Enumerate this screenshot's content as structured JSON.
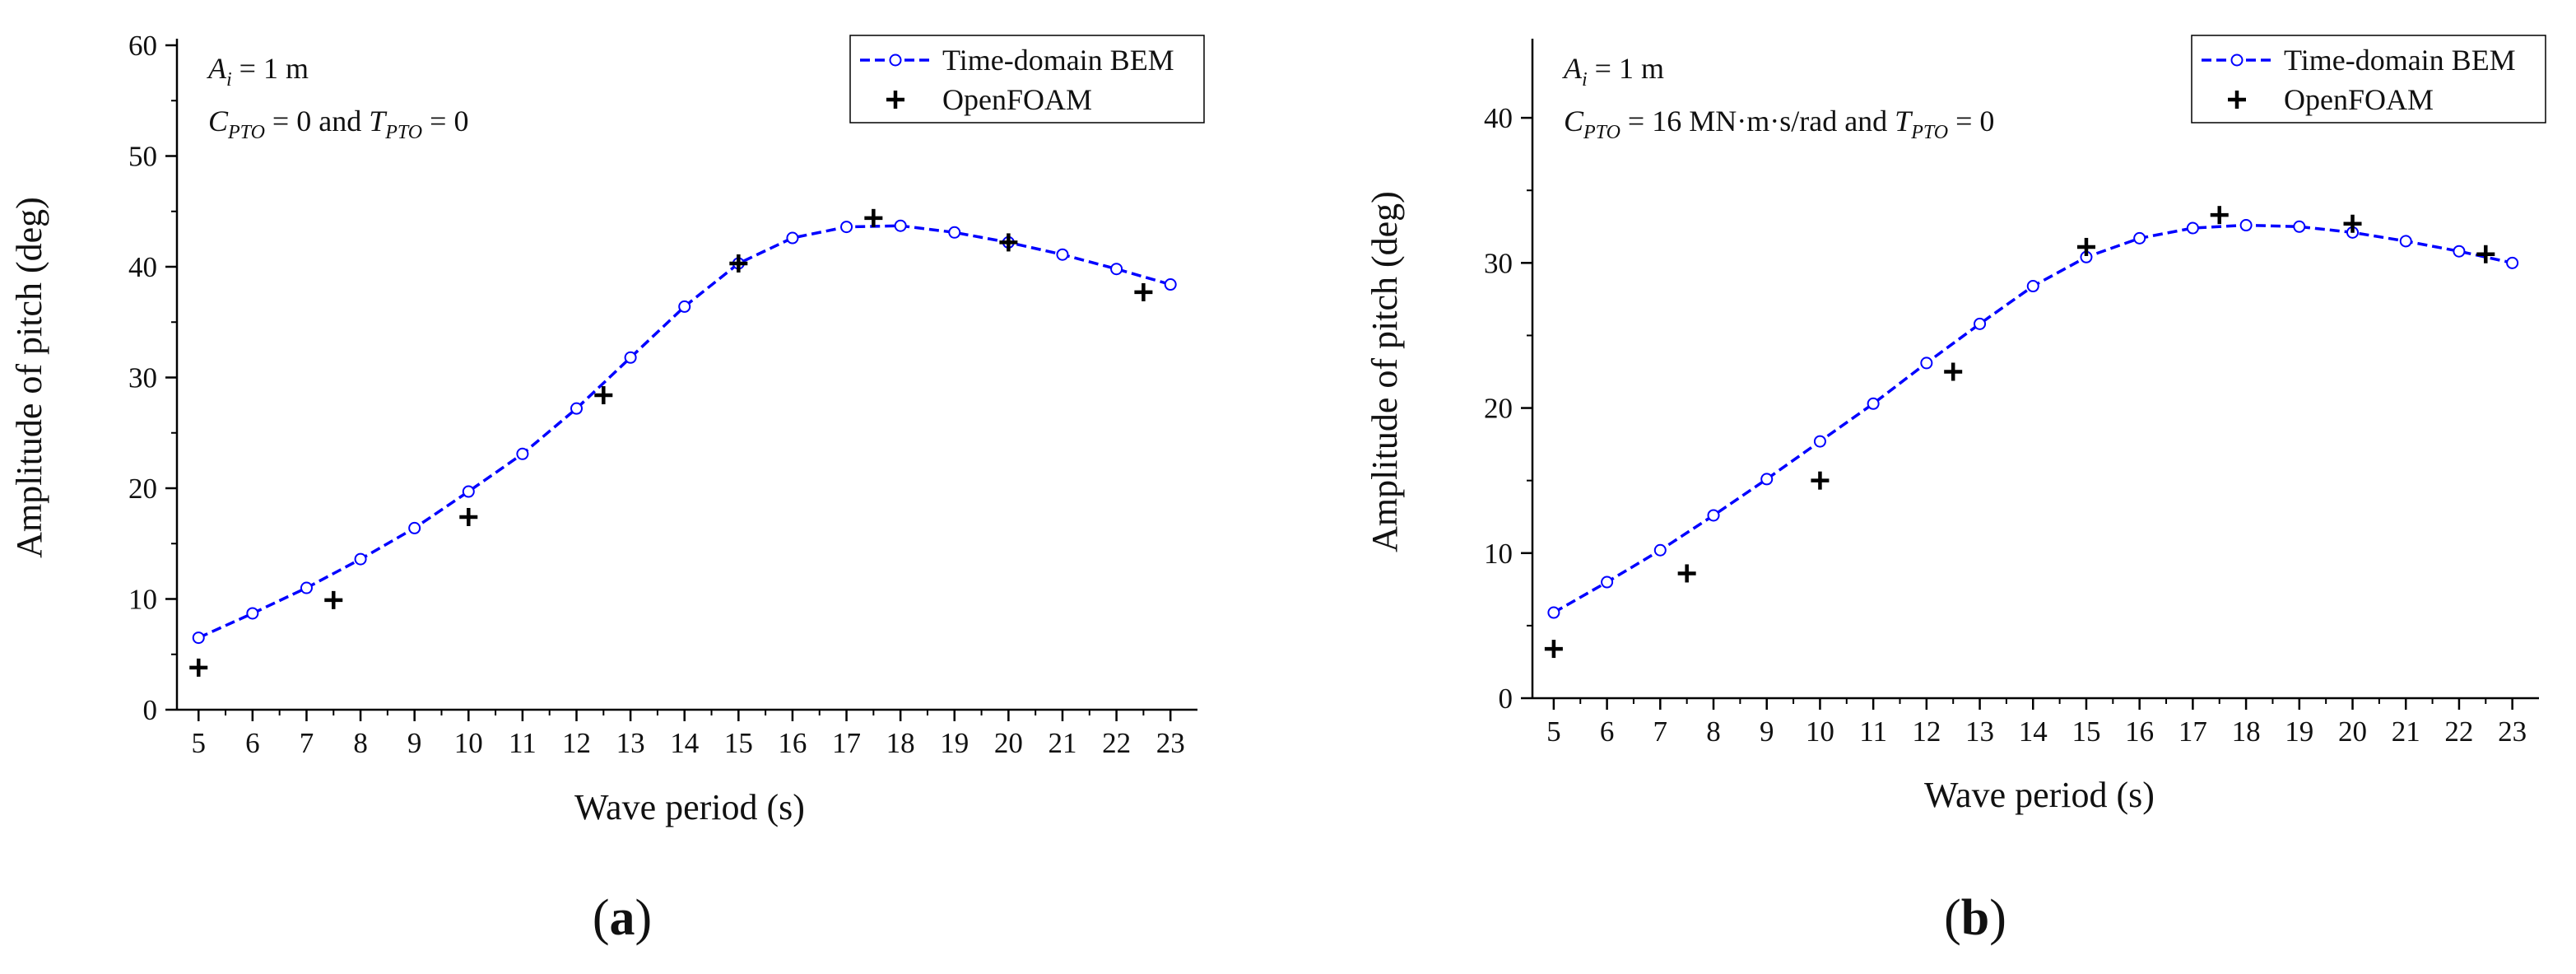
{
  "chart_data": [
    {
      "type": "line",
      "panel_label": "a",
      "xlabel": "Wave period (s)",
      "ylabel": "Amplitude of pitch (deg)",
      "xlim": [
        4.6,
        23.5
      ],
      "ylim": [
        0,
        60
      ],
      "xticks": [
        5,
        6,
        7,
        8,
        9,
        10,
        11,
        12,
        13,
        14,
        15,
        16,
        17,
        18,
        19,
        20,
        21,
        22,
        23
      ],
      "yticks": [
        0,
        10,
        20,
        30,
        40,
        50,
        60
      ],
      "annotations": {
        "amp_sym": "A",
        "amp_sub": "i",
        "amp_val": " = 1 m",
        "c_sym": "C",
        "c_sub": "PTO",
        "c_val": " = 0 and ",
        "t_sym": "T",
        "t_sub": "PTO",
        "t_val": " = 0"
      },
      "legend_position": "top-right",
      "series": [
        {
          "name": "Time-domain BEM",
          "color": "#0000ff",
          "style": "dashed-line-open-circle",
          "x": [
            5,
            6,
            7,
            8,
            9,
            10,
            11,
            12,
            13,
            14,
            15,
            16,
            17,
            18,
            19,
            20,
            21,
            22,
            23
          ],
          "y": [
            6.5,
            8.7,
            11.0,
            13.6,
            16.4,
            19.7,
            23.1,
            27.2,
            31.8,
            36.4,
            40.3,
            42.6,
            43.6,
            43.7,
            43.1,
            42.2,
            41.1,
            39.8,
            38.4
          ]
        },
        {
          "name": "OpenFOAM",
          "color": "#000000",
          "style": "plus-marker",
          "x": [
            5,
            7.5,
            10,
            12.5,
            15,
            17.5,
            20,
            22.5
          ],
          "y": [
            3.8,
            9.9,
            17.4,
            28.4,
            40.3,
            44.4,
            42.2,
            37.7
          ]
        }
      ]
    },
    {
      "type": "line",
      "panel_label": "b",
      "xlabel": "Wave period (s)",
      "ylabel": "Amplitude of pitch (deg)",
      "xlim": [
        4.6,
        23.5
      ],
      "ylim": [
        0,
        45
      ],
      "xticks": [
        5,
        6,
        7,
        8,
        9,
        10,
        11,
        12,
        13,
        14,
        15,
        16,
        17,
        18,
        19,
        20,
        21,
        22,
        23
      ],
      "yticks": [
        0,
        10,
        20,
        30,
        40
      ],
      "annotations": {
        "amp_sym": "A",
        "amp_sub": "i",
        "amp_val": " = 1 m",
        "c_sym": "C",
        "c_sub": "PTO",
        "c_val": " = 16 MN·m·s/rad and ",
        "t_sym": "T",
        "t_sub": "PTO",
        "t_val": " = 0"
      },
      "legend_position": "top-right",
      "series": [
        {
          "name": "Time-domain BEM",
          "color": "#0000ff",
          "style": "dashed-line-open-circle",
          "x": [
            5,
            6,
            7,
            8,
            9,
            10,
            11,
            12,
            13,
            14,
            15,
            16,
            17,
            18,
            19,
            20,
            21,
            22,
            23
          ],
          "y": [
            5.9,
            8.0,
            10.2,
            12.6,
            15.1,
            17.7,
            20.3,
            23.1,
            25.8,
            28.4,
            30.4,
            31.7,
            32.4,
            32.6,
            32.5,
            32.1,
            31.5,
            30.8,
            30.0
          ]
        },
        {
          "name": "OpenFOAM",
          "color": "#000000",
          "style": "plus-marker",
          "x": [
            5,
            7.5,
            10,
            12.5,
            15,
            17.5,
            20,
            22.5
          ],
          "y": [
            3.4,
            8.6,
            15.0,
            22.5,
            31.1,
            33.3,
            32.7,
            30.6
          ]
        }
      ]
    }
  ]
}
